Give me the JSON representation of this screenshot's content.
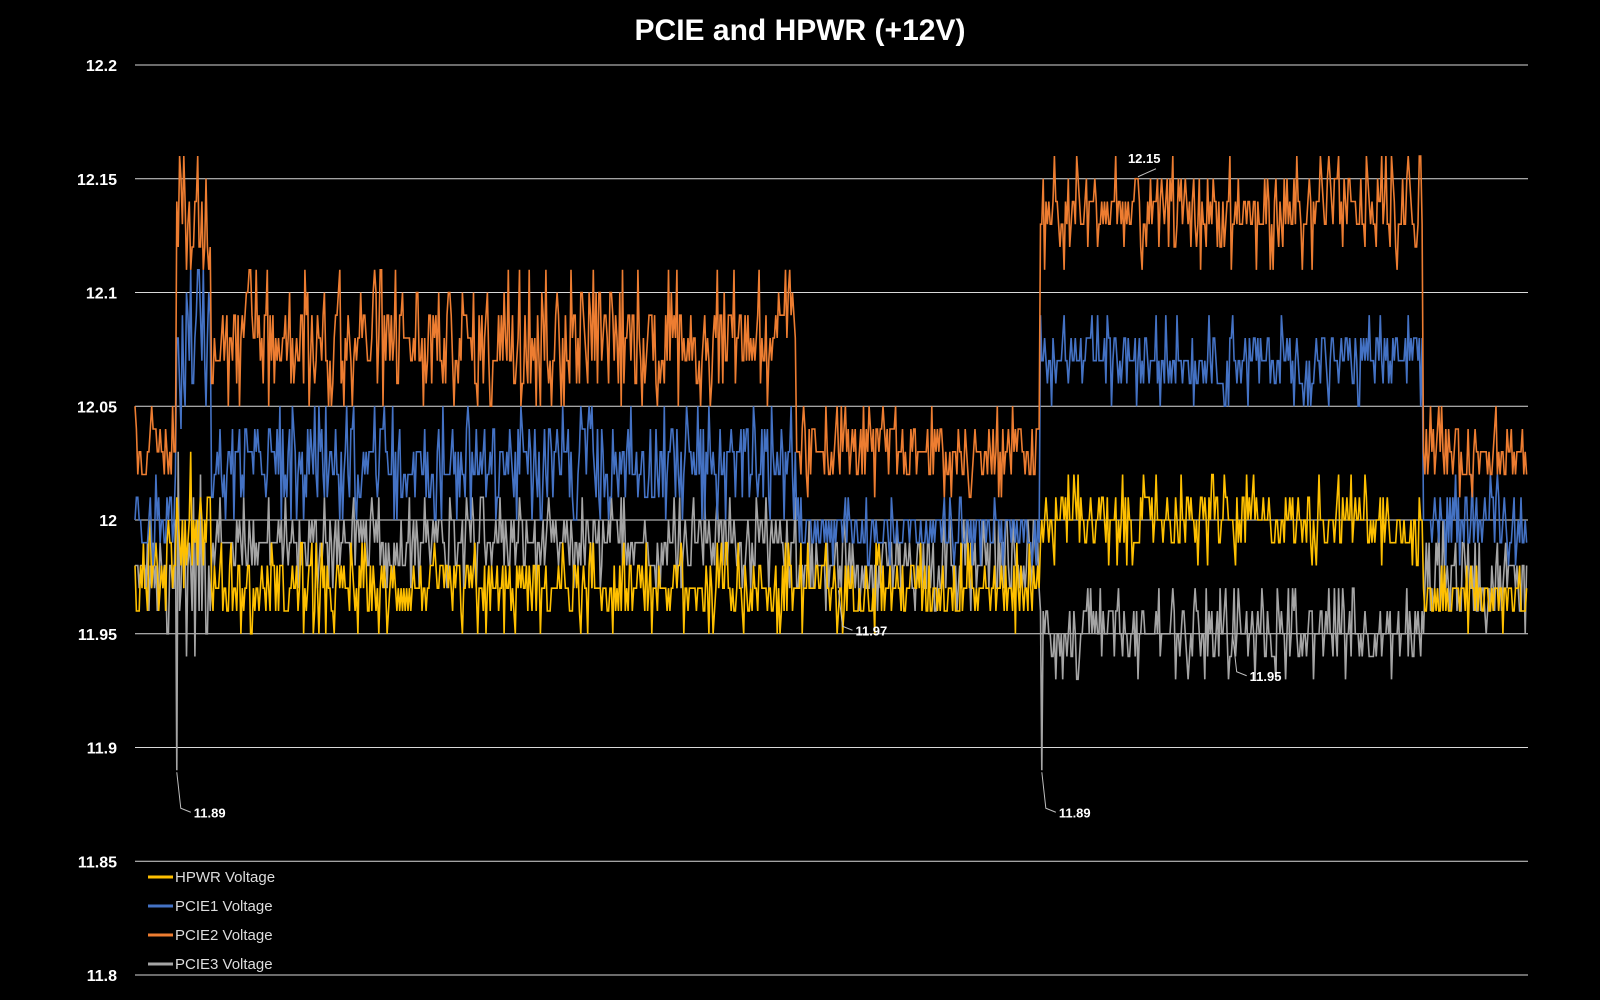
{
  "chart_data": {
    "type": "line",
    "title": "PCIE and HPWR (+12V)",
    "xlabel": "",
    "ylabel": "",
    "ylim": [
      11.8,
      12.2
    ],
    "yticks": [
      12.2,
      12.15,
      12.1,
      12.05,
      12,
      11.95,
      11.9,
      11.85,
      11.8
    ],
    "yticks_text": [
      "12.2",
      "12.15",
      "12.1",
      "12.05",
      "12",
      "11.95",
      "11.9",
      "11.85",
      "11.8"
    ],
    "grid": true,
    "legend_position": "bottom-left",
    "background": "#000000",
    "x_samples": 1000,
    "phases": [
      {
        "name": "idle-1",
        "x": [
          0,
          30
        ]
      },
      {
        "name": "spike-1",
        "x": [
          30,
          55
        ]
      },
      {
        "name": "load-1",
        "x": [
          55,
          475
        ]
      },
      {
        "name": "idle-2",
        "x": [
          475,
          650
        ]
      },
      {
        "name": "load-2",
        "x": [
          650,
          925
        ]
      },
      {
        "name": "idle-3",
        "x": [
          925,
          1000
        ]
      }
    ],
    "series": [
      {
        "name": "HPWR Voltage",
        "color": "#FFC000",
        "levels": {
          "idle-1": [
            11.97,
            11.99
          ],
          "spike-1": [
            11.98,
            12.02
          ],
          "load-1": [
            11.96,
            11.98
          ],
          "idle-2": [
            11.96,
            11.98
          ],
          "load-2": [
            11.99,
            12.01
          ],
          "idle-3": [
            11.96,
            11.97
          ]
        }
      },
      {
        "name": "PCIE1 Voltage",
        "color": "#4472C4",
        "levels": {
          "idle-1": [
            11.99,
            12.01
          ],
          "spike-1": [
            12.05,
            12.1
          ],
          "load-1": [
            12.01,
            12.04
          ],
          "idle-2": [
            11.99,
            12.0
          ],
          "load-2": [
            12.06,
            12.08
          ],
          "idle-3": [
            11.99,
            12.01
          ]
        }
      },
      {
        "name": "PCIE2 Voltage",
        "color": "#ED7D31",
        "levels": {
          "idle-1": [
            12.02,
            12.04
          ],
          "spike-1": [
            12.11,
            12.15
          ],
          "load-1": [
            12.06,
            12.1
          ],
          "idle-2": [
            12.02,
            12.04
          ],
          "load-2": [
            12.12,
            12.15
          ],
          "idle-3": [
            12.02,
            12.04
          ]
        }
      },
      {
        "name": "PCIE3 Voltage",
        "color": "#A5A5A5",
        "levels": {
          "idle-1": [
            11.96,
            11.99
          ],
          "spike-1": [
            11.94,
            12.02
          ],
          "load-1": [
            11.98,
            12.0
          ],
          "idle-2": [
            11.97,
            11.99
          ],
          "load-2": [
            11.94,
            11.96
          ],
          "idle-3": [
            11.96,
            11.99
          ]
        }
      }
    ],
    "annotations": [
      {
        "text": "11.89",
        "series": "PCIE3 Voltage",
        "x": 30,
        "y": 11.89
      },
      {
        "text": "11.97",
        "series": "PCIE3 Voltage",
        "x": 505,
        "y": 11.97
      },
      {
        "text": "11.89",
        "series": "PCIE3 Voltage",
        "x": 651,
        "y": 11.89
      },
      {
        "text": "12.15",
        "series": "PCIE2 Voltage",
        "x": 720,
        "y": 12.15
      },
      {
        "text": "11.95",
        "series": "PCIE3 Voltage",
        "x": 788,
        "y": 11.95
      }
    ]
  }
}
